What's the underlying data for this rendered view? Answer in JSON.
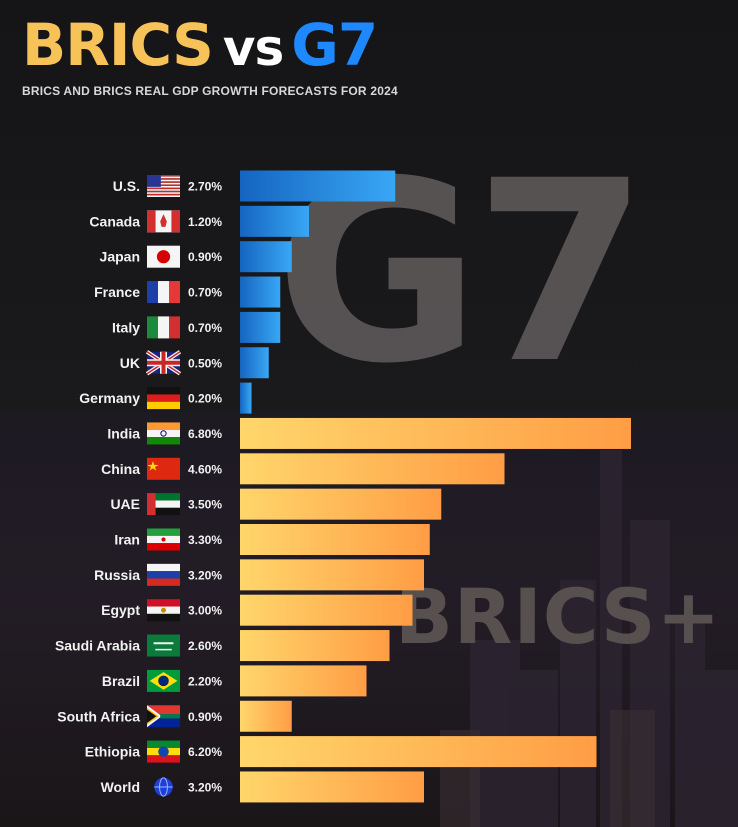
{
  "header": {
    "title_part1": "BRICS",
    "title_part2": "vs",
    "title_part3": "G7",
    "subtitle": "BRICS AND BRICS REAL GDP GROWTH FORECASTS FOR 2024"
  },
  "watermarks": {
    "g7": "G7",
    "brics": "BRICS+"
  },
  "colors": {
    "g7_bar_start": "#1565c0",
    "g7_bar_end": "#39a7f5",
    "brics_bar_start": "#ffd66b",
    "brics_bar_end": "#ff9d45",
    "title_brics": "#f7c258",
    "title_g7": "#1e88ff"
  },
  "chart_data": {
    "type": "bar",
    "orientation": "horizontal",
    "title": "BRICS vs G7",
    "subtitle": "BRICS AND BRICS REAL GDP GROWTH FORECASTS FOR 2024",
    "xlim": [
      0,
      6.8
    ],
    "grid": false,
    "series": [
      {
        "name": "G7",
        "color": "blue",
        "categories": [
          "U.S.",
          "Canada",
          "Japan",
          "France",
          "Italy",
          "UK",
          "Germany"
        ],
        "values": [
          2.7,
          1.2,
          0.9,
          0.7,
          0.7,
          0.5,
          0.2
        ],
        "value_labels": [
          "2.70%",
          "1.20%",
          "0.90%",
          "0.70%",
          "0.70%",
          "0.50%",
          "0.20%"
        ],
        "flags": [
          "us-flag-icon",
          "canada-flag-icon",
          "japan-flag-icon",
          "france-flag-icon",
          "italy-flag-icon",
          "uk-flag-icon",
          "germany-flag-icon"
        ]
      },
      {
        "name": "BRICS+",
        "color": "orange",
        "categories": [
          "India",
          "China",
          "UAE",
          "Iran",
          "Russia",
          "Egypt",
          "Saudi Arabia",
          "Brazil",
          "South Africa",
          "Ethiopia",
          "World"
        ],
        "values": [
          6.8,
          4.6,
          3.5,
          3.3,
          3.2,
          3.0,
          2.6,
          2.2,
          0.9,
          6.2,
          3.2
        ],
        "value_labels": [
          "6.80%",
          "4.60%",
          "3.50%",
          "3.30%",
          "3.20%",
          "3.00%",
          "2.60%",
          "2.20%",
          "0.90%",
          "6.20%",
          "3.20%"
        ],
        "flags": [
          "india-flag-icon",
          "china-flag-icon",
          "uae-flag-icon",
          "iran-flag-icon",
          "russia-flag-icon",
          "egypt-flag-icon",
          "saudi-arabia-flag-icon",
          "brazil-flag-icon",
          "south-africa-flag-icon",
          "ethiopia-flag-icon",
          "world-globe-icon"
        ]
      }
    ]
  }
}
